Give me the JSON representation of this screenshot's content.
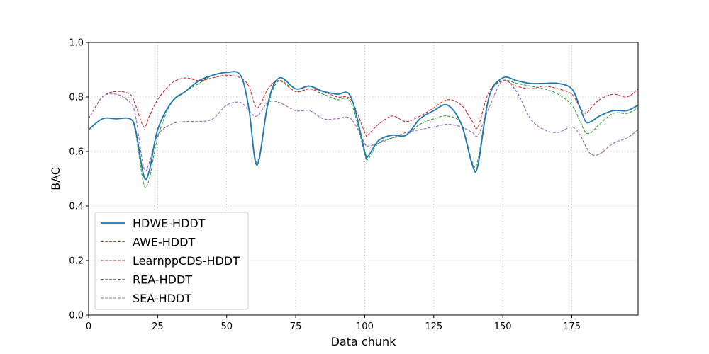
{
  "chart_data": {
    "type": "line",
    "title": "",
    "xlabel": "Data chunk",
    "ylabel": "BAC",
    "xlim": [
      0,
      199
    ],
    "ylim": [
      0.0,
      1.0
    ],
    "x_ticks": [
      0,
      25,
      50,
      75,
      100,
      125,
      150,
      175
    ],
    "y_ticks": [
      0.0,
      0.2,
      0.4,
      0.6,
      0.8,
      1.0
    ],
    "x_tick_labels": [
      "0",
      "25",
      "50",
      "75",
      "100",
      "125",
      "150",
      "175"
    ],
    "y_tick_labels": [
      "0.0",
      "0.2",
      "0.4",
      "0.6",
      "0.8",
      "1.0"
    ],
    "grid": true,
    "legend_position": "lower-left",
    "x": [
      0,
      5,
      10,
      15,
      17,
      20,
      22,
      25,
      30,
      35,
      40,
      45,
      50,
      55,
      58,
      61,
      65,
      69,
      75,
      80,
      85,
      90,
      95,
      100,
      101,
      105,
      110,
      115,
      120,
      125,
      130,
      135,
      139,
      141,
      145,
      150,
      155,
      160,
      165,
      170,
      175,
      178,
      180,
      182,
      185,
      190,
      195,
      199
    ],
    "series": [
      {
        "name": "HDWE-HDDT",
        "color": "#1f77b4",
        "style": "solid",
        "values": [
          0.68,
          0.72,
          0.72,
          0.72,
          0.68,
          0.51,
          0.53,
          0.68,
          0.78,
          0.82,
          0.86,
          0.88,
          0.89,
          0.88,
          0.76,
          0.55,
          0.78,
          0.87,
          0.83,
          0.84,
          0.82,
          0.81,
          0.8,
          0.6,
          0.58,
          0.64,
          0.66,
          0.66,
          0.72,
          0.75,
          0.77,
          0.7,
          0.55,
          0.55,
          0.8,
          0.87,
          0.86,
          0.85,
          0.85,
          0.85,
          0.83,
          0.76,
          0.71,
          0.71,
          0.73,
          0.75,
          0.75,
          0.77
        ]
      },
      {
        "name": "AWE-HDDT",
        "color": "#2ca02c",
        "style": "dashed",
        "values": [
          0.68,
          0.72,
          0.72,
          0.72,
          0.67,
          0.48,
          0.5,
          0.65,
          0.78,
          0.82,
          0.85,
          0.88,
          0.89,
          0.88,
          0.76,
          0.56,
          0.77,
          0.86,
          0.82,
          0.83,
          0.81,
          0.79,
          0.78,
          0.59,
          0.57,
          0.63,
          0.65,
          0.66,
          0.7,
          0.72,
          0.73,
          0.7,
          0.56,
          0.57,
          0.8,
          0.86,
          0.85,
          0.84,
          0.83,
          0.81,
          0.77,
          0.71,
          0.67,
          0.67,
          0.7,
          0.74,
          0.74,
          0.76
        ]
      },
      {
        "name": "LearnppCDS-HDDT",
        "color": "#d62728",
        "style": "dashed",
        "values": [
          0.72,
          0.8,
          0.82,
          0.81,
          0.77,
          0.69,
          0.73,
          0.79,
          0.85,
          0.87,
          0.86,
          0.87,
          0.88,
          0.87,
          0.84,
          0.76,
          0.83,
          0.86,
          0.82,
          0.83,
          0.82,
          0.8,
          0.79,
          0.67,
          0.66,
          0.7,
          0.73,
          0.71,
          0.73,
          0.76,
          0.79,
          0.77,
          0.71,
          0.69,
          0.82,
          0.86,
          0.84,
          0.83,
          0.84,
          0.83,
          0.81,
          0.76,
          0.74,
          0.76,
          0.79,
          0.81,
          0.8,
          0.83
        ]
      },
      {
        "name": "REA-HDDT",
        "color": "#9467bd",
        "style": "dashed",
        "values": [
          0.72,
          0.8,
          0.81,
          0.78,
          0.73,
          0.54,
          0.56,
          0.66,
          0.7,
          0.71,
          0.71,
          0.72,
          0.77,
          0.78,
          0.75,
          0.73,
          0.78,
          0.78,
          0.75,
          0.75,
          0.72,
          0.72,
          0.72,
          0.63,
          0.62,
          0.63,
          0.65,
          0.67,
          0.68,
          0.69,
          0.7,
          0.69,
          0.67,
          0.66,
          0.76,
          0.86,
          0.82,
          0.72,
          0.68,
          0.67,
          0.69,
          0.66,
          0.62,
          0.59,
          0.59,
          0.63,
          0.65,
          0.68
        ]
      },
      {
        "name": "SEA-HDDT",
        "color": "#7f7f7f",
        "style": "dashed",
        "values": [
          0.68,
          0.72,
          0.72,
          0.72,
          0.68,
          0.51,
          0.53,
          0.68,
          0.78,
          0.82,
          0.86,
          0.88,
          0.89,
          0.88,
          0.76,
          0.55,
          0.78,
          0.87,
          0.83,
          0.84,
          0.82,
          0.81,
          0.8,
          0.6,
          0.58,
          0.64,
          0.66,
          0.66,
          0.72,
          0.75,
          0.77,
          0.7,
          0.55,
          0.55,
          0.8,
          0.87,
          0.86,
          0.85,
          0.85,
          0.85,
          0.83,
          0.76,
          0.71,
          0.71,
          0.73,
          0.75,
          0.75,
          0.77
        ]
      }
    ]
  }
}
